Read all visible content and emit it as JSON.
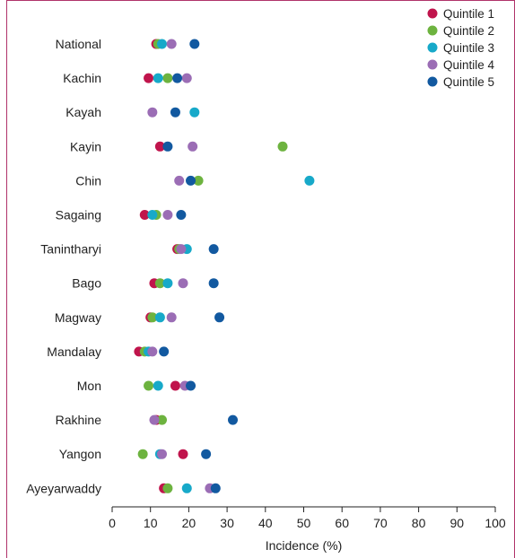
{
  "chart_data": {
    "type": "scatter",
    "orientation": "horizontal-dot",
    "xlabel": "Incidence (%)",
    "xlim": [
      0,
      100
    ],
    "xticks": [
      0,
      10,
      20,
      30,
      40,
      50,
      60,
      70,
      80,
      90,
      100
    ],
    "grid": false,
    "legend_position": "top-right",
    "categories": [
      "National",
      "Kachin",
      "Kayah",
      "Kayin",
      "Chin",
      "Sagaing",
      "Tanintharyi",
      "Bago",
      "Magway",
      "Mandalay",
      "Mon",
      "Rakhine",
      "Yangon",
      "Ayeyarwaddy"
    ],
    "series": [
      {
        "name": "Quintile 1",
        "color": "#c0144c",
        "values": [
          11.5,
          9.5,
          null,
          12.5,
          null,
          8.5,
          17,
          11,
          10,
          7,
          16.5,
          11.5,
          18.5,
          13.5
        ]
      },
      {
        "name": "Quintile 2",
        "color": "#6db33f",
        "values": [
          12,
          14.5,
          null,
          44.5,
          22.5,
          11.5,
          17.5,
          12.5,
          10.5,
          8.5,
          9.5,
          13,
          8,
          14.5
        ]
      },
      {
        "name": "Quintile 3",
        "color": "#17a9c9",
        "values": [
          13,
          12,
          21.5,
          null,
          51.5,
          10.5,
          19.5,
          14.5,
          12.5,
          9.5,
          12,
          null,
          12.5,
          19.5
        ]
      },
      {
        "name": "Quintile 4",
        "color": "#9b6db5",
        "values": [
          15.5,
          19.5,
          10.5,
          21,
          17.5,
          14.5,
          18,
          18.5,
          15.5,
          10.5,
          19,
          11,
          13,
          25.5
        ]
      },
      {
        "name": "Quintile 5",
        "color": "#1259a0",
        "values": [
          21.5,
          17,
          16.5,
          14.5,
          20.5,
          18,
          26.5,
          26.5,
          28,
          13.5,
          20.5,
          31.5,
          24.5,
          27
        ]
      }
    ]
  }
}
